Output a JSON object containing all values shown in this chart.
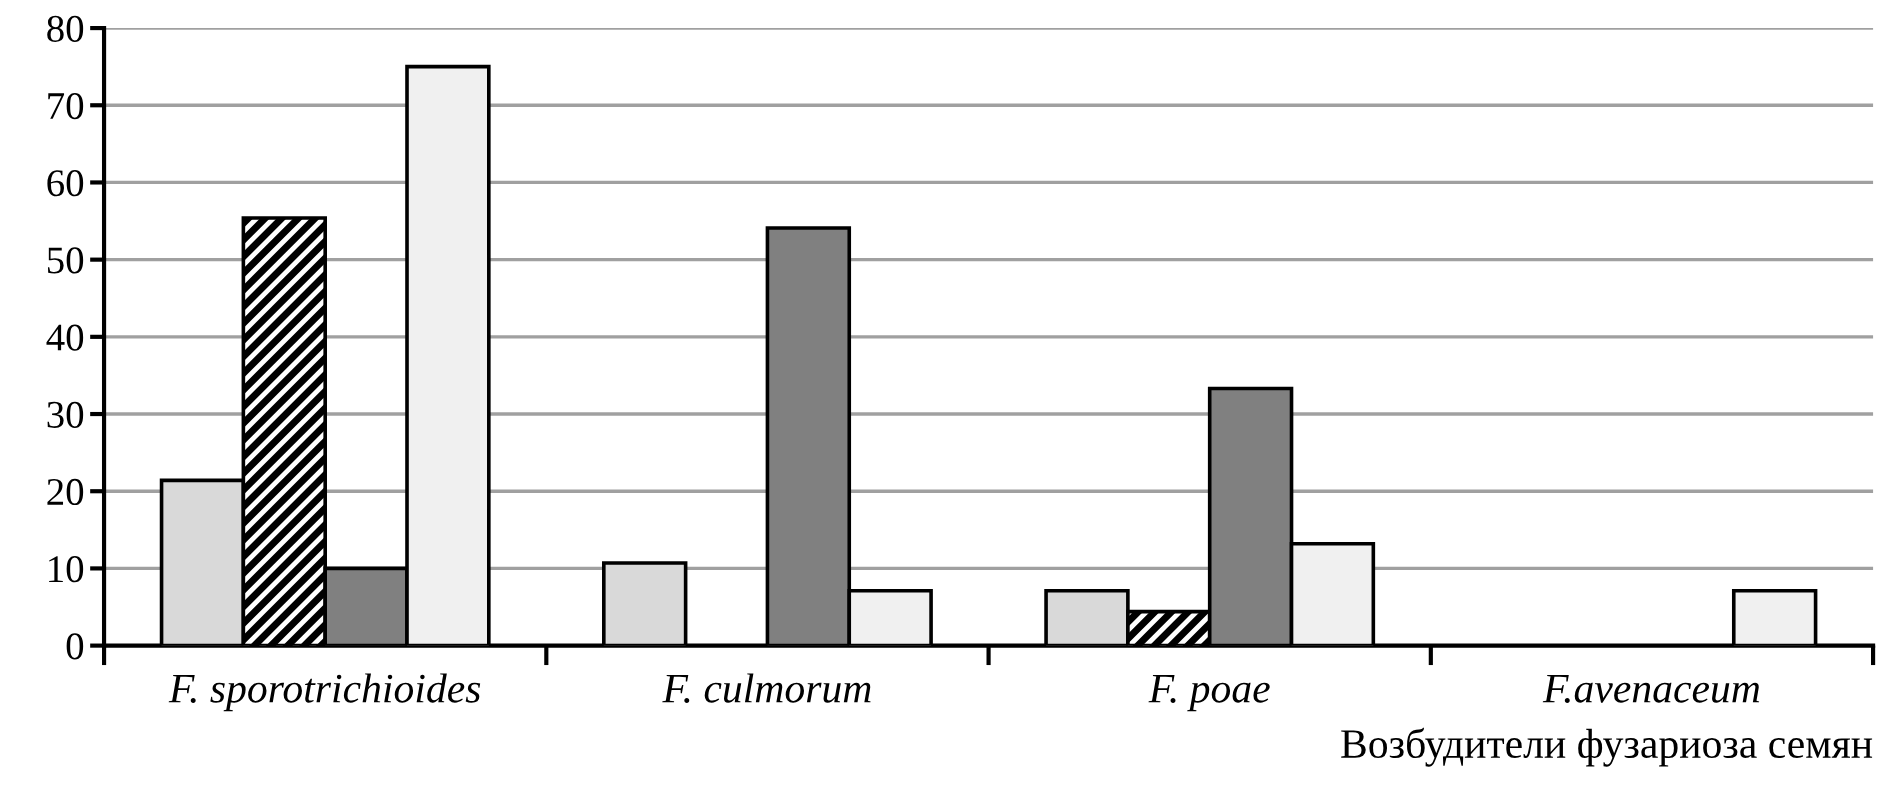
{
  "chart_data": {
    "type": "bar",
    "categories": [
      "F. sporotrichioides",
      "F. culmorum",
      "F. poae",
      "F.avenaceum"
    ],
    "series": [
      {
        "color": "#d9d9d9",
        "values": [
          21.4,
          10.7,
          7.1,
          0
        ]
      },
      {
        "color": "#000000",
        "values": [
          55.4,
          0,
          4.4,
          0
        ]
      },
      {
        "color": "#808080",
        "values": [
          10.0,
          54.1,
          33.3,
          0
        ]
      },
      {
        "color": "#f0f0f0",
        "values": [
          75.0,
          7.1,
          13.2,
          7.1
        ]
      }
    ],
    "xlabel": "Возбудители фузариоза семян",
    "ylim": [
      0,
      80
    ],
    "yticks": [
      0,
      10,
      20,
      30,
      40,
      50,
      60,
      70,
      80
    ],
    "grid": "y",
    "legend": false
  }
}
